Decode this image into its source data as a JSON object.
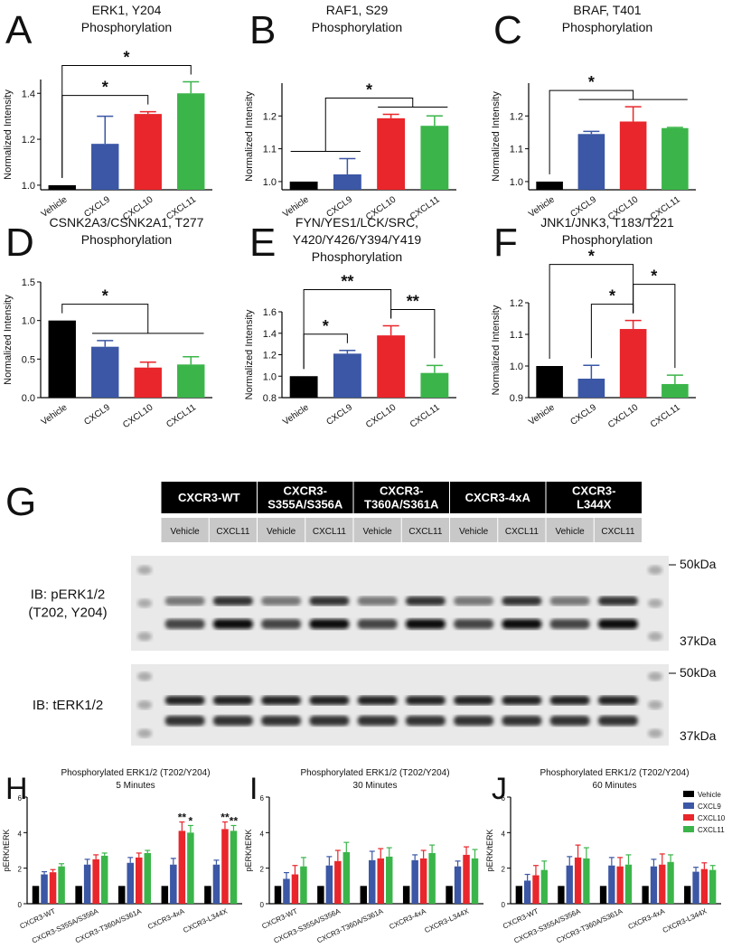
{
  "chart_data": [
    {
      "type": "bar",
      "panel": "A",
      "title": [
        "ERK1, Y204",
        "Phosphorylation"
      ],
      "ylabel": "Normalized Intensity",
      "categories": [
        "Vehicle",
        "CXCL9",
        "CXCL10",
        "CXCL11"
      ],
      "values": [
        1.0,
        1.18,
        1.31,
        1.4
      ],
      "errors": [
        0,
        0.12,
        0.01,
        0.05
      ],
      "colors": [
        "#000000",
        "#3b57a5",
        "#e8262b",
        "#3bb54a"
      ],
      "ylim": [
        0.98,
        1.46
      ],
      "yticks": [
        {
          "value": 1,
          "label": "1.0"
        },
        1.2,
        1.4
      ],
      "comparisons": [
        {
          "groups": [
            [
              "Vehicle"
            ],
            [
              "CXCL10"
            ]
          ],
          "label": "*"
        },
        {
          "groups": [
            [
              "Vehicle"
            ],
            [
              "CXCL11"
            ]
          ],
          "label": "*"
        }
      ]
    },
    {
      "type": "bar",
      "panel": "B",
      "title": [
        "RAF1, S29",
        "Phosphorylation"
      ],
      "ylabel": "Normalized Intensity",
      "categories": [
        "Vehicle",
        "CXCL9",
        "CXCL10",
        "CXCL11"
      ],
      "values": [
        1.0,
        1.022,
        1.193,
        1.17
      ],
      "errors": [
        0,
        0.048,
        0.012,
        0.03
      ],
      "colors": [
        "#000000",
        "#3b57a5",
        "#e8262b",
        "#3bb54a"
      ],
      "ylim": [
        0.975,
        1.3
      ],
      "yticks": [
        {
          "value": 1,
          "label": "1.0"
        },
        1.1,
        1.2
      ],
      "comparisons": [
        {
          "groups": [
            [
              "Vehicle",
              "CXCL9"
            ],
            [
              "CXCL10",
              "CXCL11"
            ]
          ],
          "label": "*"
        }
      ]
    },
    {
      "type": "bar",
      "panel": "C",
      "title": [
        "BRAF, T401",
        "Phosphorylation"
      ],
      "ylabel": "Normalized Intensity",
      "categories": [
        "Vehicle",
        "CXCL9",
        "CXCL10",
        "CXCL11"
      ],
      "values": [
        1.0,
        1.145,
        1.183,
        1.163
      ],
      "errors": [
        0,
        0.008,
        0.045,
        0.002
      ],
      "colors": [
        "#000000",
        "#3b57a5",
        "#e8262b",
        "#3bb54a"
      ],
      "ylim": [
        0.975,
        1.3
      ],
      "yticks": [
        {
          "value": 1,
          "label": "1.0"
        },
        1.1,
        1.2
      ],
      "comparisons": [
        {
          "groups": [
            [
              "Vehicle"
            ],
            [
              "CXCL9",
              "CXCL10",
              "CXCL11"
            ]
          ],
          "label": "*"
        }
      ]
    },
    {
      "type": "bar",
      "panel": "D",
      "title": [
        "CSNK2A3/CSNK2A1, T277",
        "Phosphorylation"
      ],
      "ylabel": "Normalized Intensity",
      "categories": [
        "Vehicle",
        "CXCL9",
        "CXCL10",
        "CXCL11"
      ],
      "values": [
        1.0,
        0.66,
        0.39,
        0.43
      ],
      "errors": [
        0,
        0.08,
        0.07,
        0.1
      ],
      "colors": [
        "#000000",
        "#3b57a5",
        "#e8262b",
        "#3bb54a"
      ],
      "ylim": [
        0,
        1.5
      ],
      "yticks": [
        {
          "value": 0,
          "label": "0.0"
        },
        0.5,
        {
          "value": 1,
          "label": "1.0"
        },
        1.5
      ],
      "comparisons": [
        {
          "groups": [
            [
              "Vehicle"
            ],
            [
              "CXCL9",
              "CXCL10",
              "CXCL11"
            ]
          ],
          "label": "*"
        }
      ]
    },
    {
      "type": "bar",
      "panel": "E",
      "title": [
        "FYN/YES1/LCK/SRC,",
        "Y420/Y426/Y394/Y419",
        "Phosphorylation"
      ],
      "ylabel": "Normalized Intensity",
      "categories": [
        "Vehicle",
        "CXCL9",
        "CXCL10",
        "CXCL11"
      ],
      "values": [
        1.0,
        1.21,
        1.38,
        1.03
      ],
      "errors": [
        0,
        0.03,
        0.09,
        0.07
      ],
      "colors": [
        "#000000",
        "#3b57a5",
        "#e8262b",
        "#3bb54a"
      ],
      "ylim": [
        0.8,
        1.6
      ],
      "yticks": [
        0.8,
        {
          "value": 1,
          "label": "1.0"
        },
        1.2,
        1.4,
        1.6
      ],
      "comparisons": [
        {
          "groups": [
            [
              "Vehicle"
            ],
            [
              "CXCL9"
            ]
          ],
          "label": "*"
        },
        {
          "groups": [
            [
              "CXCL10"
            ],
            [
              "CXCL11"
            ]
          ],
          "label": "**"
        },
        {
          "groups": [
            [
              "Vehicle"
            ],
            [
              "CXCL10"
            ]
          ],
          "label": "**"
        }
      ]
    },
    {
      "type": "bar",
      "panel": "F",
      "title": [
        "JNK1/JNK3, T183/T221",
        "Phosphorylation"
      ],
      "ylabel": "Normalized Intensity",
      "categories": [
        "Vehicle",
        "CXCL9",
        "CXCL10",
        "CXCL11"
      ],
      "values": [
        1.0,
        0.96,
        1.117,
        0.943
      ],
      "errors": [
        0,
        0.042,
        0.027,
        0.028
      ],
      "colors": [
        "#000000",
        "#3b57a5",
        "#e8262b",
        "#3bb54a"
      ],
      "ylim": [
        0.9,
        1.2
      ],
      "yticks": [
        0.9,
        {
          "value": 1,
          "label": "1.0"
        },
        1.1,
        1.2
      ],
      "comparisons": [
        {
          "groups": [
            [
              "CXCL9"
            ],
            [
              "CXCL10"
            ]
          ],
          "label": "*"
        },
        {
          "groups": [
            [
              "CXCL10"
            ],
            [
              "CXCL11"
            ]
          ],
          "label": "*"
        },
        {
          "groups": [
            [
              "Vehicle"
            ],
            [
              "CXCL10"
            ]
          ],
          "label": "*"
        }
      ]
    },
    {
      "type": "grouped_bar",
      "panel": "H",
      "title": [
        "Phosphorylated ERK1/2 (T202/Y204)",
        "5 Minutes"
      ],
      "ylabel": "pERK/tERK",
      "categories": [
        "CXCR3-WT",
        "CXCR3-S355A/S356A",
        "CXCR3-T360A/S361A",
        "CXCR3-4xA",
        "CXCR3-L344X"
      ],
      "ylim": [
        0,
        6
      ],
      "yticks": [
        0,
        2,
        4,
        6
      ],
      "series": [
        {
          "name": "Vehicle",
          "color": "#000000",
          "values": [
            1,
            1,
            1,
            1,
            1
          ],
          "errors": [
            0,
            0,
            0,
            0,
            0
          ]
        },
        {
          "name": "CXCL9",
          "color": "#3b57a5",
          "values": [
            1.65,
            2.2,
            2.3,
            2.2,
            2.2
          ],
          "errors": [
            0.15,
            0.3,
            0.3,
            0.35,
            0.25
          ]
        },
        {
          "name": "CXCL10",
          "color": "#e8262b",
          "values": [
            1.77,
            2.5,
            2.6,
            4.1,
            4.2
          ],
          "errors": [
            0.15,
            0.25,
            0.25,
            0.5,
            0.4
          ],
          "labels": [
            null,
            null,
            null,
            "**",
            "**"
          ]
        },
        {
          "name": "CXCL11",
          "color": "#3bb54a",
          "values": [
            2.1,
            2.7,
            2.85,
            4.0,
            4.1
          ],
          "errors": [
            0.15,
            0.15,
            0.15,
            0.4,
            0.3
          ],
          "labels": [
            null,
            null,
            null,
            "*",
            "**"
          ]
        }
      ]
    },
    {
      "type": "grouped_bar",
      "panel": "I",
      "title": [
        "Phosphorylated ERK1/2 (T202/Y204)",
        "30 Minutes"
      ],
      "ylabel": "pERK/tERK",
      "categories": [
        "CXCR3-WT",
        "CXCR3-S355A/S356A",
        "CXCR3-T360A/S361A",
        "CXCR3-4xA",
        "CXCR3-L344X"
      ],
      "ylim": [
        0,
        6
      ],
      "yticks": [
        0,
        2,
        4,
        6
      ],
      "series": [
        {
          "name": "Vehicle",
          "color": "#000000",
          "values": [
            1,
            1,
            1,
            1,
            1
          ],
          "errors": [
            0,
            0,
            0,
            0,
            0
          ]
        },
        {
          "name": "CXCL9",
          "color": "#3b57a5",
          "values": [
            1.4,
            2.15,
            2.45,
            2.45,
            2.1
          ],
          "errors": [
            0.35,
            0.5,
            0.5,
            0.3,
            0.3
          ]
        },
        {
          "name": "CXCL10",
          "color": "#e8262b",
          "values": [
            1.65,
            2.4,
            2.55,
            2.55,
            2.75
          ],
          "errors": [
            0.5,
            0.6,
            0.55,
            0.45,
            0.45
          ]
        },
        {
          "name": "CXCL11",
          "color": "#3bb54a",
          "values": [
            2.1,
            2.9,
            2.65,
            2.85,
            2.55
          ],
          "errors": [
            0.5,
            0.55,
            0.5,
            0.45,
            0.5
          ]
        }
      ]
    },
    {
      "type": "grouped_bar",
      "panel": "J",
      "title": [
        "Phosphorylated ERK1/2 (T202/Y204)",
        "60 Minutes"
      ],
      "ylabel": "pERK/tERK",
      "categories": [
        "CXCR3-WT",
        "CXCR3-S355A/S356A",
        "CXCR3-T360A/S361A",
        "CXCR3-4xA",
        "CXCR3-L344X"
      ],
      "ylim": [
        0,
        6
      ],
      "yticks": [
        0,
        2,
        4,
        6
      ],
      "legend": "top-right",
      "series": [
        {
          "name": "Vehicle",
          "color": "#000000",
          "values": [
            1,
            1,
            1,
            1,
            1
          ],
          "errors": [
            0,
            0,
            0,
            0,
            0
          ]
        },
        {
          "name": "CXCL9",
          "color": "#3b57a5",
          "values": [
            1.3,
            2.15,
            2.15,
            2.1,
            1.8
          ],
          "errors": [
            0.35,
            0.5,
            0.45,
            0.4,
            0.25
          ]
        },
        {
          "name": "CXCL10",
          "color": "#e8262b",
          "values": [
            1.6,
            2.6,
            2.1,
            2.2,
            1.95
          ],
          "errors": [
            0.55,
            0.7,
            0.5,
            0.6,
            0.35
          ]
        },
        {
          "name": "CXCL11",
          "color": "#3bb54a",
          "values": [
            1.9,
            2.55,
            2.2,
            2.35,
            1.9
          ],
          "errors": [
            0.5,
            0.6,
            0.55,
            0.4,
            0.25
          ]
        }
      ]
    }
  ],
  "blot": {
    "panel": "G",
    "constructs": [
      {
        "name": [
          "CXCR3-WT"
        ],
        "lanes": [
          "Vehicle",
          "CXCL11"
        ]
      },
      {
        "name": [
          "CXCR3-",
          "S355A/S356A"
        ],
        "lanes": [
          "Vehicle",
          "CXCL11"
        ]
      },
      {
        "name": [
          "CXCR3-",
          "T360A/S361A"
        ],
        "lanes": [
          "Vehicle",
          "CXCL11"
        ]
      },
      {
        "name": [
          "CXCR3-4xA"
        ],
        "lanes": [
          "Vehicle",
          "CXCL11"
        ]
      },
      {
        "name": [
          "CXCR3-",
          "L344X"
        ],
        "lanes": [
          "Vehicle",
          "CXCL11"
        ]
      }
    ],
    "blots": [
      {
        "label": [
          "IB: pERK1/2",
          "(T202, Y204)"
        ],
        "markers": [
          "50kDa",
          "37kDa"
        ]
      },
      {
        "label": [
          "IB: tERK1/2"
        ],
        "markers": [
          "50kDa",
          "37kDa"
        ]
      }
    ]
  }
}
